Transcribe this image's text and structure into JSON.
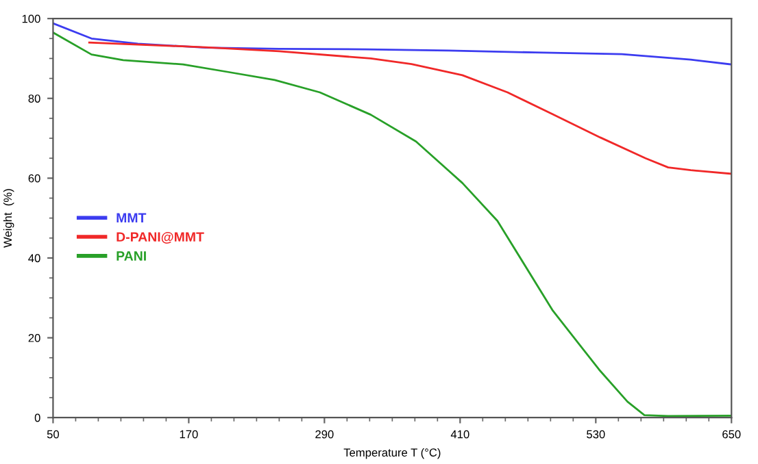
{
  "chart_data": {
    "type": "line",
    "xlabel": "Temperature T (°C)",
    "ylabel": "Weight  (%)",
    "xlim": [
      50,
      650
    ],
    "ylim": [
      0,
      100
    ],
    "xticks": [
      50,
      170,
      290,
      410,
      530,
      650
    ],
    "yticks": [
      0,
      20,
      40,
      60,
      80,
      100
    ],
    "grid": false,
    "legend": "center left",
    "marker": "none",
    "line_style": "solid",
    "series": [
      {
        "name": "MMT",
        "color": "#3c3cf0",
        "x": [
          50,
          84,
          125,
          185,
          250,
          327,
          400,
          476,
          553,
          614,
          650
        ],
        "values": [
          98.8,
          95,
          93.7,
          92.7,
          92.4,
          92.3,
          92,
          91.5,
          91.1,
          89.7,
          88.5
        ]
      },
      {
        "name": "D-PANI@MMT",
        "color": "#f02828",
        "x": [
          82,
          125,
          185,
          250,
          331,
          367,
          412,
          452,
          492,
          534,
          574,
          594,
          614,
          650
        ],
        "values": [
          94,
          93.5,
          92.8,
          91.8,
          90,
          88.6,
          85.8,
          81.5,
          76,
          70.2,
          65,
          62.7,
          62,
          61.1
        ]
      },
      {
        "name": "PANI",
        "color": "#28a028",
        "x": [
          50,
          84,
          112,
          165,
          205,
          246,
          286,
          331,
          371,
          412,
          443,
          492,
          533,
          558,
          573,
          594,
          650
        ],
        "values": [
          96.5,
          91,
          89.6,
          88.5,
          86.6,
          84.6,
          81.5,
          75.9,
          69.2,
          58.8,
          49.3,
          26.8,
          12,
          4,
          0.6,
          0.4,
          0.5
        ]
      }
    ]
  }
}
